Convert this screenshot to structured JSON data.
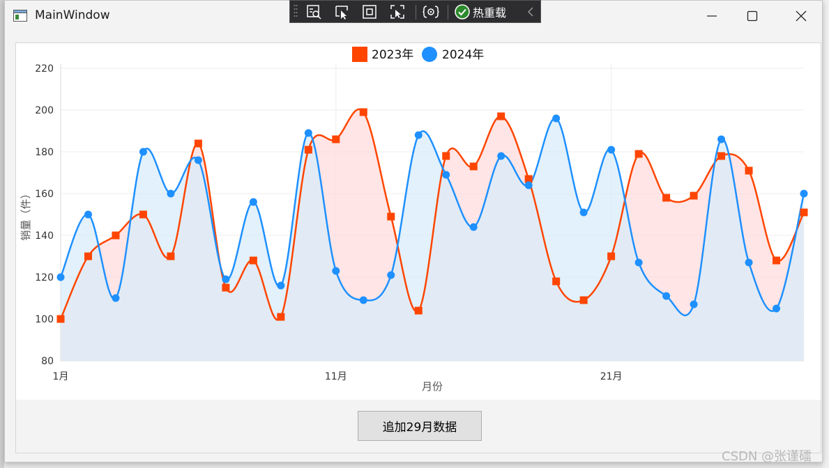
{
  "window": {
    "title": "MainWindow"
  },
  "toolbar": {
    "hot_reload_label": "热重载"
  },
  "button": {
    "add_label": "追加29月数据"
  },
  "watermark": "CSDN @张谨礌",
  "colors": {
    "series_2023": "#ff4500",
    "series_2024": "#1e90ff",
    "fill_2023": "#ffdcdc",
    "fill_2024": "#d8ecfa",
    "fill_overlap": "#e0d4de"
  },
  "chart_data": {
    "type": "line",
    "xlabel": "月份",
    "ylabel": "销量（件）",
    "ylim": [
      80,
      220
    ],
    "yticks": [
      80,
      100,
      120,
      140,
      160,
      180,
      200,
      220
    ],
    "xtick_labels": [
      {
        "day": 1,
        "label": "1月"
      },
      {
        "day": 11,
        "label": "11月"
      },
      {
        "day": 21,
        "label": "21月"
      }
    ],
    "x": [
      1,
      2,
      3,
      4,
      5,
      6,
      7,
      8,
      9,
      10,
      11,
      12,
      13,
      14,
      15,
      16,
      17,
      18,
      19,
      20,
      21,
      22,
      23,
      24,
      25,
      26,
      27,
      28
    ],
    "legend_position": "top",
    "grid": true,
    "series": [
      {
        "name": "2023年",
        "marker": "square",
        "values": [
          100,
          130,
          140,
          150,
          130,
          184,
          115,
          128,
          101,
          181,
          186,
          199,
          149,
          104,
          178,
          173,
          197,
          167,
          118,
          109,
          130,
          179,
          158,
          159,
          178,
          171,
          128,
          151
        ]
      },
      {
        "name": "2024年",
        "marker": "circle",
        "values": [
          120,
          150,
          110,
          180,
          160,
          176,
          119,
          156,
          116,
          189,
          123,
          109,
          121,
          188,
          169,
          144,
          178,
          164,
          196,
          151,
          181,
          127,
          111,
          107,
          186,
          127,
          105,
          160
        ]
      }
    ]
  }
}
